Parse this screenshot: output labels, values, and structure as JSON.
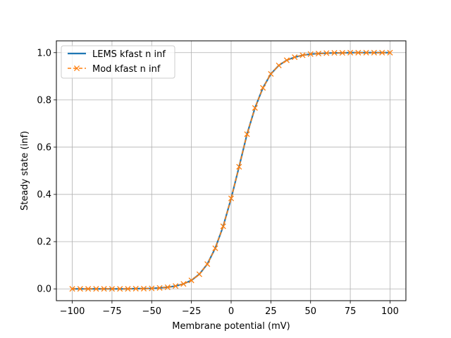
{
  "chart_data": {
    "type": "line",
    "title": "",
    "xlabel": "Membrane potential (mV)",
    "ylabel": "Steady state (inf)",
    "xlim": [
      -110,
      110
    ],
    "ylim": [
      -0.05,
      1.05
    ],
    "xticks": [
      -100,
      -75,
      -50,
      -25,
      0,
      25,
      50,
      75,
      100
    ],
    "yticks": [
      0.0,
      0.2,
      0.4,
      0.6,
      0.8,
      1.0
    ],
    "ytick_labels": [
      "0.0",
      "0.2",
      "0.4",
      "0.6",
      "0.8",
      "1.0"
    ],
    "grid": true,
    "legend_position": "upper-left",
    "series": [
      {
        "name": "LEMS kfast n inf",
        "style": "solid",
        "color": "#1f77b4",
        "x": [
          -100,
          -95,
          -90,
          -85,
          -80,
          -75,
          -70,
          -65,
          -60,
          -55,
          -50,
          -45,
          -40,
          -35,
          -30,
          -25,
          -20,
          -15,
          -10,
          -5,
          0,
          5,
          10,
          15,
          20,
          25,
          30,
          35,
          40,
          45,
          50,
          55,
          60,
          65,
          70,
          75,
          80,
          85,
          90,
          95,
          100
        ],
        "y": [
          0.0,
          0.0,
          0.0,
          0.0,
          0.0,
          0.0,
          0.0,
          0.0,
          0.001,
          0.001,
          0.002,
          0.004,
          0.007,
          0.012,
          0.021,
          0.036,
          0.062,
          0.105,
          0.172,
          0.265,
          0.383,
          0.517,
          0.655,
          0.766,
          0.851,
          0.91,
          0.946,
          0.968,
          0.981,
          0.989,
          0.994,
          0.996,
          0.998,
          0.999,
          0.999,
          1.0,
          1.0,
          1.0,
          1.0,
          1.0,
          1.0
        ]
      },
      {
        "name": "Mod kfast n inf",
        "style": "dashed",
        "marker": "x",
        "color": "#ff7f0e",
        "x": [
          -100,
          -95,
          -90,
          -85,
          -80,
          -75,
          -70,
          -65,
          -60,
          -55,
          -50,
          -45,
          -40,
          -35,
          -30,
          -25,
          -20,
          -15,
          -10,
          -5,
          0,
          5,
          10,
          15,
          20,
          25,
          30,
          35,
          40,
          45,
          50,
          55,
          60,
          65,
          70,
          75,
          80,
          85,
          90,
          95,
          100
        ],
        "y": [
          0.0,
          0.0,
          0.0,
          0.0,
          0.0,
          0.0,
          0.0,
          0.0,
          0.001,
          0.001,
          0.002,
          0.004,
          0.007,
          0.012,
          0.021,
          0.036,
          0.062,
          0.105,
          0.172,
          0.265,
          0.383,
          0.517,
          0.655,
          0.766,
          0.851,
          0.91,
          0.946,
          0.968,
          0.981,
          0.989,
          0.994,
          0.996,
          0.998,
          0.999,
          0.999,
          1.0,
          1.0,
          1.0,
          1.0,
          1.0,
          1.0
        ]
      }
    ]
  }
}
